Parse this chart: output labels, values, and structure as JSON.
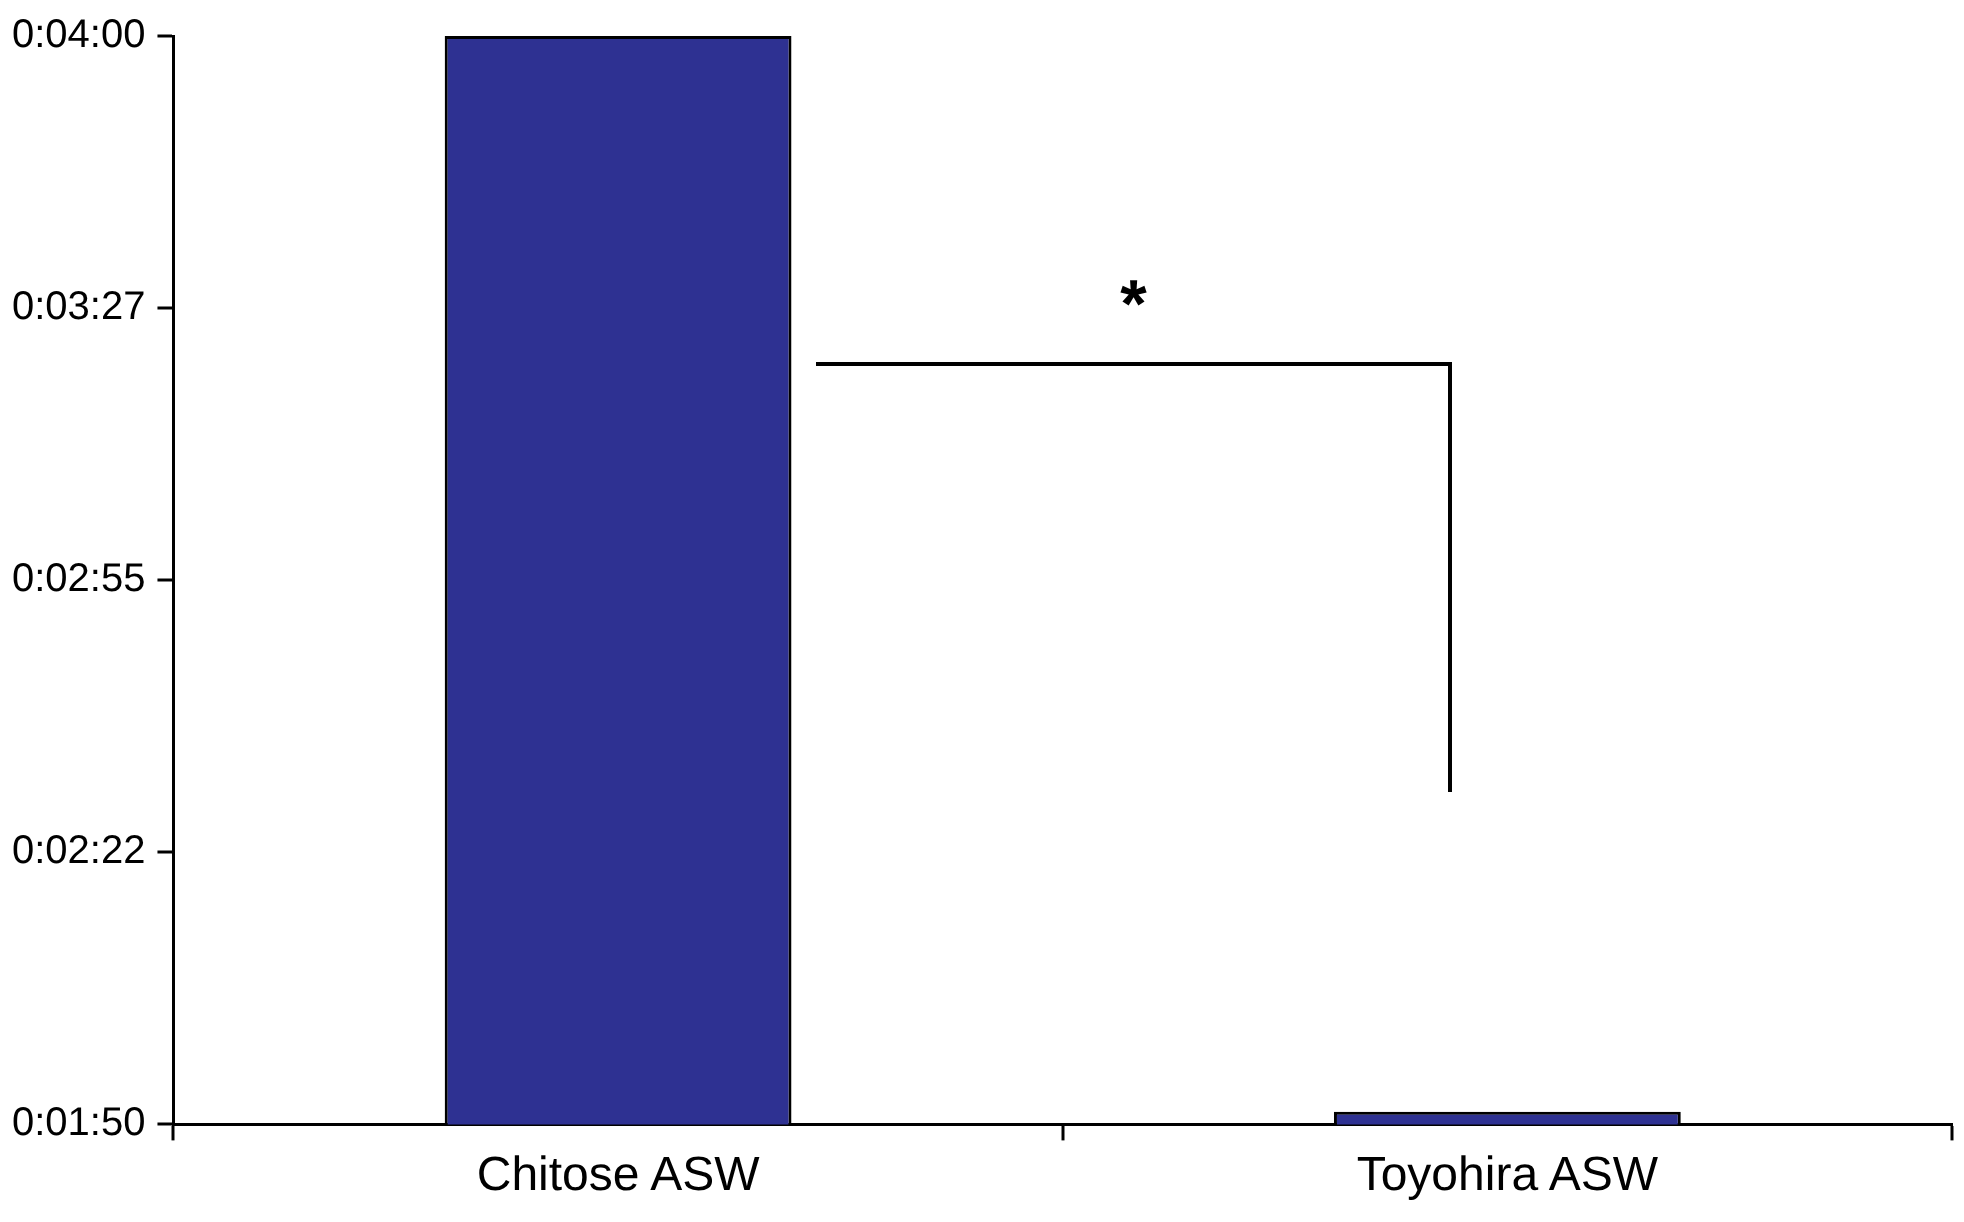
{
  "chart_data": {
    "type": "bar",
    "categories": [
      "Chitose ASW",
      "Toyohira ASW"
    ],
    "values": [
      240,
      111.5
    ],
    "color": "#2e3192",
    "ylim": [
      110,
      240
    ],
    "yticks": [
      {
        "value": 110,
        "label": "0:01:50"
      },
      {
        "value": 142.5,
        "label": "0:02:22"
      },
      {
        "value": 175,
        "label": "0:02:55"
      },
      {
        "value": 207.5,
        "label": "0:03:27"
      },
      {
        "value": 240,
        "label": "0:04:00"
      }
    ],
    "grid": false,
    "annotations": [
      "*"
    ]
  }
}
